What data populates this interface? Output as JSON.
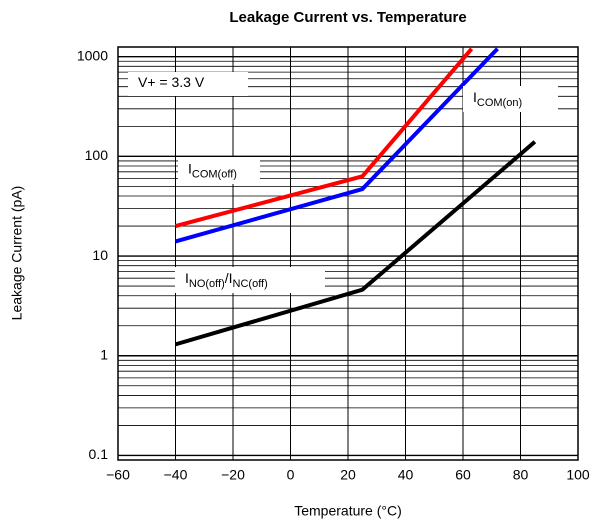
{
  "chart_data": {
    "type": "line",
    "title": "Leakage Current vs. Temperature",
    "xlabel": "Temperature (°C)",
    "ylabel": "Leakage Current (pA)",
    "ylog": true,
    "grid": true,
    "xlim": [
      -60,
      100
    ],
    "xticks": [
      {
        "value": -60,
        "label": "−60"
      },
      {
        "value": -40,
        "label": "−40"
      },
      {
        "value": -20,
        "label": "−20"
      },
      0,
      20,
      40,
      60,
      80,
      100
    ],
    "ylim": [
      0.09,
      1250
    ],
    "yticks": [
      0.1,
      1,
      10,
      100,
      1000
    ],
    "yminor": [
      0.2,
      0.3,
      0.4,
      0.5,
      0.6,
      0.7,
      0.8,
      0.9,
      2,
      3,
      4,
      5,
      6,
      7,
      8,
      9,
      20,
      30,
      40,
      50,
      60,
      70,
      80,
      90,
      200,
      300,
      400,
      500,
      600,
      700,
      800,
      900
    ],
    "series": [
      {
        "color": "#ff0000",
        "x": [
          -40,
          25,
          63
        ],
        "values": [
          20,
          63,
          1200
        ]
      },
      {
        "color": "#0000ff",
        "x": [
          -40,
          25,
          72
        ],
        "values": [
          14,
          47,
          1200
        ]
      },
      {
        "color": "#000000",
        "x": [
          -40,
          25,
          85
        ],
        "values": [
          1.3,
          4.6,
          140
        ]
      }
    ],
    "annotations": [
      {
        "parts": [
          "V+ = 3.3 V"
        ]
      },
      {
        "parts": [
          "I",
          "COM(on)"
        ]
      },
      {
        "parts": [
          "I",
          "COM(off)"
        ]
      },
      {
        "parts": [
          "I",
          "NO(off)",
          "/I",
          "NC(off)"
        ]
      }
    ]
  }
}
